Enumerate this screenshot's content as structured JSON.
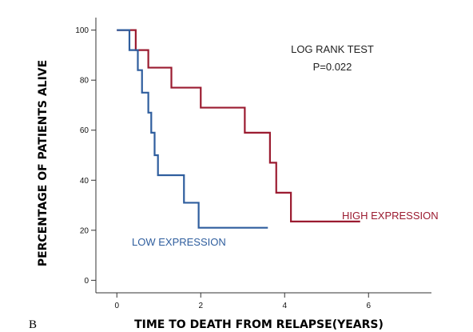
{
  "panel_label": "B",
  "chart_data": {
    "type": "line",
    "step": true,
    "xlabel": "TIME TO DEATH FROM RELAPSE(YEARS)",
    "ylabel": "PERCENTAGE OF PATIENTS ALIVE",
    "xlim": [
      -0.5,
      7.5
    ],
    "ylim": [
      -5,
      105
    ],
    "xticks": [
      0,
      2,
      4,
      6
    ],
    "yticks": [
      0,
      20,
      40,
      60,
      80,
      100
    ],
    "annotations": [
      "LOG RANK TEST",
      "P=0.022"
    ],
    "series": [
      {
        "name": "HIGH EXPRESSION",
        "color": "#9b1b30",
        "points": [
          [
            0,
            100
          ],
          [
            0.45,
            100
          ],
          [
            0.45,
            92
          ],
          [
            0.75,
            92
          ],
          [
            0.75,
            85
          ],
          [
            1.3,
            85
          ],
          [
            1.3,
            77
          ],
          [
            2.0,
            77
          ],
          [
            2.0,
            69
          ],
          [
            3.05,
            69
          ],
          [
            3.05,
            59
          ],
          [
            3.65,
            59
          ],
          [
            3.65,
            47
          ],
          [
            3.8,
            47
          ],
          [
            3.8,
            35
          ],
          [
            4.15,
            35
          ],
          [
            4.15,
            23.5
          ],
          [
            5.8,
            23.5
          ]
        ]
      },
      {
        "name": "LOW EXPRESSION",
        "color": "#2f5e9e",
        "points": [
          [
            0,
            100
          ],
          [
            0.3,
            100
          ],
          [
            0.3,
            92
          ],
          [
            0.5,
            92
          ],
          [
            0.5,
            84
          ],
          [
            0.6,
            84
          ],
          [
            0.6,
            75
          ],
          [
            0.75,
            75
          ],
          [
            0.75,
            67
          ],
          [
            0.82,
            67
          ],
          [
            0.82,
            59
          ],
          [
            0.9,
            59
          ],
          [
            0.9,
            50
          ],
          [
            0.98,
            50
          ],
          [
            0.98,
            42
          ],
          [
            1.6,
            42
          ],
          [
            1.6,
            31
          ],
          [
            1.95,
            31
          ],
          [
            1.95,
            21
          ],
          [
            3.6,
            21
          ]
        ]
      }
    ]
  }
}
